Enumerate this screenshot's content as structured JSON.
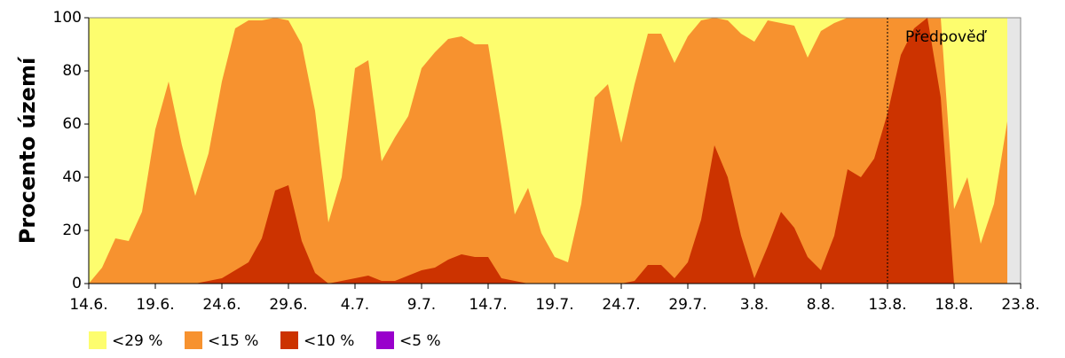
{
  "chart_data": {
    "type": "area",
    "y_label": "Procento území",
    "categories": [
      "14.6.",
      null,
      null,
      null,
      null,
      "19.6.",
      null,
      null,
      null,
      null,
      "24.6.",
      null,
      null,
      null,
      null,
      "29.6.",
      null,
      null,
      null,
      null,
      "4.7.",
      null,
      null,
      null,
      null,
      "9.7.",
      null,
      null,
      null,
      null,
      "14.7.",
      null,
      null,
      null,
      null,
      "19.7.",
      null,
      null,
      null,
      null,
      "24.7.",
      null,
      null,
      null,
      null,
      "29.7.",
      null,
      null,
      null,
      null,
      "3.8.",
      null,
      null,
      null,
      null,
      "8.8.",
      null,
      null,
      null,
      null,
      "13.8.",
      null,
      null,
      null,
      null,
      "18.8.",
      null,
      null,
      null,
      null,
      "23.8."
    ],
    "series": [
      {
        "name": "<29 %",
        "color": "#fdfd6e",
        "values": [
          100,
          100,
          100,
          100,
          100,
          100,
          100,
          100,
          100,
          100,
          100,
          100,
          100,
          100,
          100,
          100,
          100,
          100,
          100,
          100,
          100,
          100,
          100,
          100,
          100,
          100,
          100,
          100,
          100,
          100,
          100,
          100,
          100,
          100,
          100,
          100,
          100,
          100,
          100,
          100,
          100,
          100,
          100,
          100,
          100,
          100,
          100,
          100,
          100,
          100,
          100,
          100,
          100,
          100,
          100,
          100,
          100,
          100,
          100,
          100,
          100,
          100,
          100,
          100,
          100,
          100,
          100,
          100,
          100,
          100,
          null
        ]
      },
      {
        "name": "<15 %",
        "color": "#f7922f",
        "values": [
          0,
          6,
          17,
          16,
          27,
          58,
          76,
          52,
          33,
          49,
          76,
          96,
          99,
          99,
          100,
          99,
          90,
          65,
          23,
          40,
          81,
          84,
          46,
          55,
          63,
          81,
          87,
          92,
          93,
          90,
          90,
          59,
          26,
          36,
          19,
          10,
          8,
          30,
          70,
          75,
          53,
          75,
          94,
          94,
          83,
          93,
          99,
          100,
          99,
          94,
          91,
          99,
          98,
          97,
          85,
          95,
          98,
          100,
          100,
          100,
          100,
          100,
          100,
          100,
          100,
          28,
          40,
          15,
          30,
          61,
          null
        ]
      },
      {
        "name": "<10 %",
        "color": "#cc3300",
        "values": [
          0,
          0,
          0,
          0,
          0,
          0,
          0,
          0,
          0,
          1,
          2,
          5,
          8,
          17,
          35,
          37,
          16,
          4,
          0,
          1,
          2,
          3,
          1,
          1,
          3,
          5,
          6,
          9,
          11,
          10,
          10,
          2,
          1,
          0,
          0,
          0,
          0,
          0,
          0,
          0,
          0,
          1,
          7,
          7,
          2,
          8,
          24,
          52,
          40,
          18,
          2,
          14,
          27,
          21,
          10,
          5,
          18,
          43,
          40,
          47,
          64,
          86,
          96,
          100,
          70,
          0,
          0,
          0,
          0,
          0,
          null
        ]
      },
      {
        "name": "<5 %",
        "color": "#9900cc",
        "values": [
          0,
          0,
          0,
          0,
          0,
          0,
          0,
          0,
          0,
          0,
          0,
          0,
          0,
          0,
          0,
          0,
          0,
          0,
          0,
          0,
          0,
          0,
          0,
          0,
          0,
          0,
          0,
          0,
          0,
          0,
          0,
          0,
          0,
          0,
          0,
          0,
          0,
          0,
          0,
          0,
          0,
          0,
          0,
          0,
          0,
          0,
          0,
          0,
          0,
          0,
          0,
          0,
          0,
          0,
          0,
          0,
          0,
          0,
          0,
          0,
          0,
          0,
          0,
          0,
          0,
          0,
          0,
          0,
          0,
          0,
          null
        ]
      }
    ],
    "ylim": [
      0,
      100
    ],
    "yticks": [
      0,
      20,
      40,
      60,
      80,
      100
    ],
    "forecast_start": "13.8.",
    "forecast_label": "Předpověď"
  }
}
